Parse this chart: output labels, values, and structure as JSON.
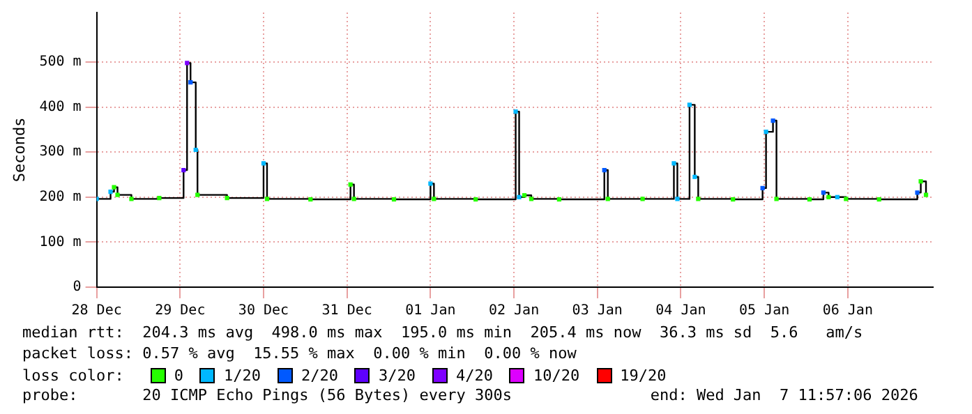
{
  "chart_data": {
    "type": "step",
    "ylabel": "Seconds",
    "legend_title": "loss color:",
    "legend": "bottom",
    "grid": true,
    "xlim": [
      "2025-12-28T00:00",
      "2026-01-07T00:30"
    ],
    "xticks": [
      {
        "value": "2025-12-28",
        "label": "28 Dec"
      },
      {
        "value": "2025-12-29",
        "label": "29 Dec"
      },
      {
        "value": "2025-12-30",
        "label": "30 Dec"
      },
      {
        "value": "2025-12-31",
        "label": "31 Dec"
      },
      {
        "value": "2026-01-01",
        "label": "01 Jan"
      },
      {
        "value": "2026-01-02",
        "label": "02 Jan"
      },
      {
        "value": "2026-01-03",
        "label": "03 Jan"
      },
      {
        "value": "2026-01-04",
        "label": "04 Jan"
      },
      {
        "value": "2026-01-05",
        "label": "05 Jan"
      },
      {
        "value": "2026-01-06",
        "label": "06 Jan"
      }
    ],
    "ylim": [
      0,
      610
    ],
    "yticks": [
      {
        "value": 0,
        "label": "0"
      },
      {
        "value": 100,
        "label": "100 m"
      },
      {
        "value": 200,
        "label": "200 m"
      },
      {
        "value": 300,
        "label": "300 m"
      },
      {
        "value": 400,
        "label": "400 m"
      },
      {
        "value": 500,
        "label": "500 m"
      }
    ],
    "x": [
      "2025-12-28T00:00",
      "2025-12-28T04:00",
      "2025-12-28T05:00",
      "2025-12-28T06:00",
      "2025-12-28T10:00",
      "2025-12-28T18:00",
      "2025-12-29T01:00",
      "2025-12-29T02:00",
      "2025-12-29T03:00",
      "2025-12-29T04:30",
      "2025-12-29T05:00",
      "2025-12-29T13:30",
      "2025-12-30T00:00",
      "2025-12-30T01:00",
      "2025-12-30T13:30",
      "2025-12-31T01:00",
      "2025-12-31T02:00",
      "2025-12-31T13:30",
      "2026-01-01T00:00",
      "2026-01-01T01:00",
      "2026-01-01T13:00",
      "2026-01-02T00:30",
      "2026-01-02T01:30",
      "2026-01-02T03:00",
      "2026-01-02T05:00",
      "2026-01-02T13:00",
      "2026-01-03T02:00",
      "2026-01-03T03:00",
      "2026-01-03T13:00",
      "2026-01-03T22:00",
      "2026-01-03T23:00",
      "2026-01-04T02:30",
      "2026-01-04T04:00",
      "2026-01-04T05:00",
      "2026-01-04T15:00",
      "2026-01-04T23:30",
      "2026-01-05T00:30",
      "2026-01-05T02:30",
      "2026-01-05T03:30",
      "2026-01-05T13:00",
      "2026-01-05T17:00",
      "2026-01-05T18:30",
      "2026-01-05T21:00",
      "2026-01-05T23:30",
      "2026-01-06T09:00",
      "2026-01-06T20:00",
      "2026-01-06T21:00",
      "2026-01-06T22:30"
    ],
    "series": [
      {
        "color": "#000000",
        "values": [
          196,
          212,
          222,
          205,
          196,
          198,
          260,
          498,
          455,
          305,
          205,
          198,
          275,
          196,
          195,
          228,
          196,
          195,
          230,
          196,
          195,
          390,
          200,
          204,
          196,
          195,
          260,
          196,
          196,
          275,
          196,
          405,
          245,
          196,
          195,
          220,
          345,
          370,
          196,
          195,
          210,
          200,
          200,
          196,
          195,
          210,
          235,
          205
        ]
      },
      {
        "name": "0",
        "type": "scatter",
        "marker": "square",
        "color": "#26ff00",
        "x": [
          "2025-12-28T05:00",
          "2025-12-28T06:00",
          "2025-12-28T10:00",
          "2025-12-28T18:00",
          "2025-12-29T05:00",
          "2025-12-29T13:30",
          "2025-12-30T01:00",
          "2025-12-30T13:30",
          "2025-12-31T01:00",
          "2025-12-31T02:00",
          "2025-12-31T13:30",
          "2026-01-01T01:00",
          "2026-01-01T13:00",
          "2026-01-02T03:00",
          "2026-01-02T05:00",
          "2026-01-02T13:00",
          "2026-01-03T03:00",
          "2026-01-03T13:00",
          "2026-01-04T05:00",
          "2026-01-04T15:00",
          "2026-01-05T03:30",
          "2026-01-05T13:00",
          "2026-01-05T18:30",
          "2026-01-05T23:30",
          "2026-01-06T09:00",
          "2026-01-06T21:00",
          "2026-01-06T22:30"
        ],
        "values": [
          222,
          205,
          196,
          198,
          205,
          198,
          196,
          195,
          228,
          196,
          195,
          196,
          195,
          204,
          196,
          195,
          196,
          196,
          196,
          195,
          196,
          195,
          200,
          196,
          195,
          235,
          205
        ]
      },
      {
        "name": "1/20",
        "type": "scatter",
        "marker": "square",
        "color": "#00b8ff",
        "x": [
          "2025-12-28T00:00",
          "2025-12-28T04:00",
          "2025-12-29T04:30",
          "2025-12-30T00:00",
          "2026-01-01T00:00",
          "2026-01-02T00:30",
          "2026-01-02T01:30",
          "2026-01-03T22:00",
          "2026-01-03T23:00",
          "2026-01-04T02:30",
          "2026-01-04T04:00",
          "2026-01-05T00:30",
          "2026-01-05T21:00"
        ],
        "values": [
          196,
          212,
          305,
          275,
          230,
          390,
          200,
          275,
          196,
          405,
          245,
          345,
          200
        ]
      },
      {
        "name": "2/20",
        "type": "scatter",
        "marker": "square",
        "color": "#0059ff",
        "x": [
          "2025-12-29T03:00",
          "2026-01-03T02:00",
          "2026-01-04T23:30",
          "2026-01-05T02:30",
          "2026-01-05T17:00",
          "2026-01-06T20:00"
        ],
        "values": [
          455,
          260,
          220,
          370,
          210,
          210
        ]
      },
      {
        "name": "3/20",
        "type": "scatter",
        "marker": "square",
        "color": "#5e00ff",
        "x": [
          "2025-12-29T01:00"
        ],
        "values": [
          260
        ]
      },
      {
        "name": "4/20",
        "type": "scatter",
        "marker": "square",
        "color": "#7e00ff",
        "x": [
          "2025-12-29T02:00"
        ],
        "values": [
          498
        ]
      },
      {
        "name": "10/20",
        "type": "scatter",
        "marker": "square",
        "color": "#dd00ff",
        "values": [
          null,
          null,
          null,
          null,
          null,
          null,
          null,
          null,
          null,
          null,
          null,
          null,
          null,
          null,
          null,
          null,
          null,
          null,
          null,
          null,
          null,
          null,
          null,
          null,
          null,
          null,
          null,
          null,
          null,
          null,
          null,
          null,
          null,
          null,
          null,
          null,
          null,
          null,
          null,
          null,
          null,
          null,
          null,
          null,
          null,
          null,
          null,
          null
        ]
      },
      {
        "name": "19/20",
        "type": "scatter",
        "marker": "square",
        "color": "#ff0000",
        "values": [
          null,
          null,
          null,
          null,
          null,
          null,
          null,
          null,
          null,
          null,
          null,
          null,
          null,
          null,
          null,
          null,
          null,
          null,
          null,
          null,
          null,
          null,
          null,
          null,
          null,
          null,
          null,
          null,
          null,
          null,
          null,
          null,
          null,
          null,
          null,
          null,
          null,
          null,
          null,
          null,
          null,
          null,
          null,
          null,
          null,
          null,
          null,
          null
        ]
      }
    ],
    "annotations": [
      "median rtt:  204.3 ms avg  498.0 ms max  195.0 ms min  205.4 ms now  36.3 ms sd  5.6   am/s",
      "packet loss: 0.57 % avg  15.55 % max  0.00 % min  0.00 % now",
      "probe:       20 ICMP Echo Pings (56 Bytes) every 300s               end: Wed Jan  7 11:57:06 2026"
    ]
  }
}
